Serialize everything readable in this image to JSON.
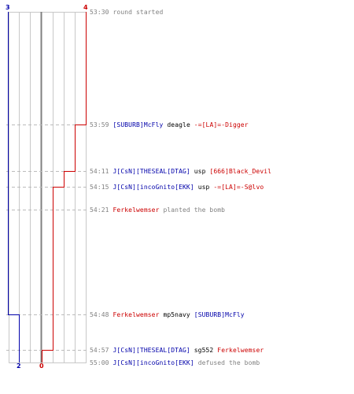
{
  "colors": {
    "ct": "#0000aa",
    "t": "#cc0000",
    "time": "#808080",
    "weapon": "#000000",
    "grid": "#c8c8c8",
    "axis": "#808080",
    "guide": "#bbbbbb"
  },
  "counters": {
    "ct_start": "3",
    "t_start": "4",
    "ct_end": "2",
    "t_end": "0"
  },
  "events": [
    {
      "time": "53:30",
      "text": "round started"
    },
    {
      "time": "53:59",
      "killer": "[SUBURB]McFly",
      "weapon": "deagle",
      "victim": "-=[LA]=-Digger"
    },
    {
      "time": "54:11",
      "killer": "J[CsN][THESEAL[DTAG]",
      "weapon": "usp",
      "victim": "[666]Black_Devil"
    },
    {
      "time": "54:15",
      "killer": "J[CsN][incoGnito[EKK]",
      "weapon": "usp",
      "victim": "-=[LA]=-S@lvo"
    },
    {
      "time": "54:21",
      "actor": "Ferkelwemser",
      "text": "planted the bomb"
    },
    {
      "time": "54:48",
      "killer": "Ferkelwemser",
      "weapon": "mp5navy",
      "victim": "[SUBURB]McFly"
    },
    {
      "time": "54:57",
      "killer": "J[CsN][THESEAL[DTAG]",
      "weapon": "sg552",
      "victim": "Ferkelwemser"
    },
    {
      "time": "55:00",
      "actor": "J[CsN][incoGnito[EKK]",
      "text": "defused the bomb"
    }
  ]
}
